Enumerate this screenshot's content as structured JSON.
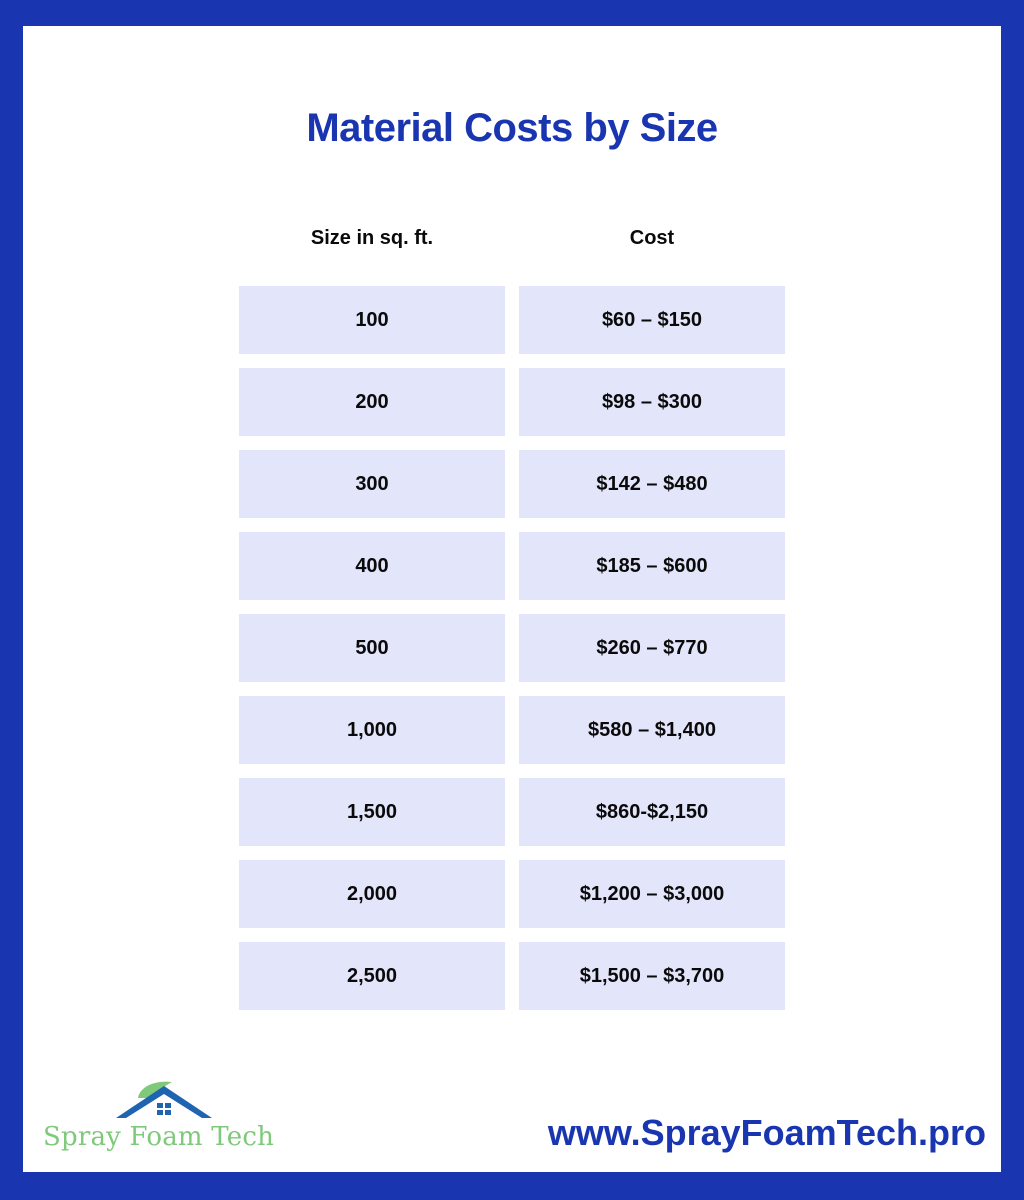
{
  "title": "Material Costs by Size",
  "table": {
    "headers": [
      "Size in sq. ft.",
      "Cost"
    ],
    "rows": [
      [
        "100",
        "$60 – $150"
      ],
      [
        "200",
        "$98 – $300"
      ],
      [
        "300",
        "$142 – $480"
      ],
      [
        "400",
        "$185 – $600"
      ],
      [
        "500",
        "$260 – $770"
      ],
      [
        "1,000",
        "$580 – $1,400"
      ],
      [
        "1,500",
        "$860-$2,150"
      ],
      [
        "2,000",
        "$1,200 – $3,000"
      ],
      [
        "2,500",
        "$1,500 – $3,700"
      ]
    ]
  },
  "logo": {
    "text": "Spray Foam Tech",
    "icon": "house-leaf-logo-icon"
  },
  "website": "www.SprayFoamTech.pro",
  "colors": {
    "brand_blue": "#1a35b0",
    "cell_bg": "#e3e6fb",
    "logo_green": "#7ec97a",
    "background": "#ffffff"
  }
}
